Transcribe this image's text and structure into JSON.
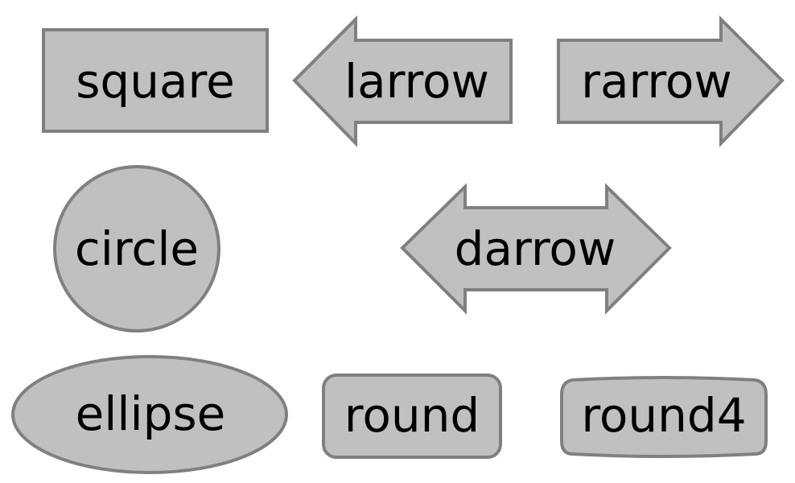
{
  "shapes": {
    "square": {
      "label": "square"
    },
    "larrow": {
      "label": "larrow"
    },
    "rarrow": {
      "label": "rarrow"
    },
    "circle": {
      "label": "circle"
    },
    "darrow": {
      "label": "darrow"
    },
    "ellipse": {
      "label": "ellipse"
    },
    "round": {
      "label": "round"
    },
    "round4": {
      "label": "round4"
    }
  },
  "colors": {
    "fill": "#c0c0c0",
    "stroke": "#808080",
    "text": "#000000",
    "background": "#ffffff"
  }
}
